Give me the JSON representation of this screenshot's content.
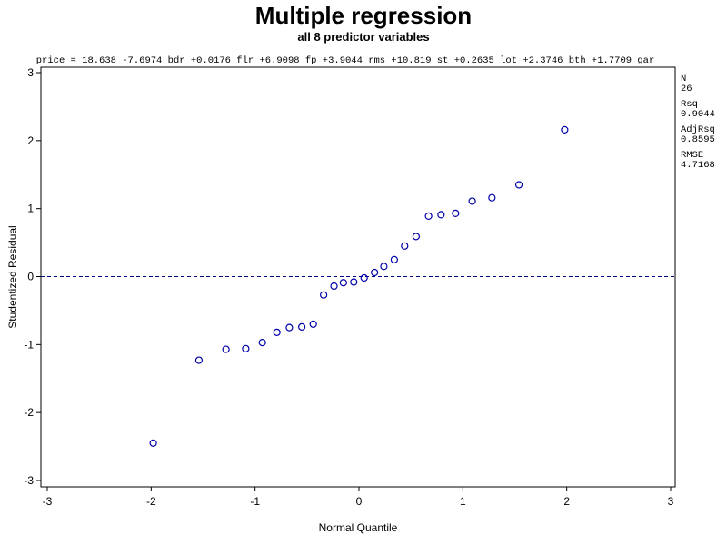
{
  "chart_data": {
    "type": "scatter",
    "title": "Multiple regression",
    "subtitle": "all 8 predictor variables",
    "equation": "price = 18.638 -7.6974 bdr +0.0176 flr +6.9098 fp +3.9044 rms +10.819 st +0.2635 lot +2.3746 bth +1.7709 gar",
    "xlabel": "Normal Quantile",
    "ylabel": "Studentized Residual",
    "xlim": [
      -3,
      3
    ],
    "ylim": [
      -3,
      3
    ],
    "xticks": [
      "-3",
      "-2",
      "-1",
      "0",
      "1",
      "2",
      "3"
    ],
    "yticks": [
      "-3",
      "-2",
      "-1",
      "0",
      "1",
      "2",
      "3"
    ],
    "reference_line": {
      "y": 0,
      "style": "dashed"
    },
    "marker": "circle",
    "marker_color": "#0000aa",
    "points": [
      {
        "x": -1.98,
        "y": -2.45
      },
      {
        "x": -1.54,
        "y": -1.23
      },
      {
        "x": -1.28,
        "y": -1.07
      },
      {
        "x": -1.09,
        "y": -1.06
      },
      {
        "x": -0.93,
        "y": -0.97
      },
      {
        "x": -0.79,
        "y": -0.82
      },
      {
        "x": -0.67,
        "y": -0.75
      },
      {
        "x": -0.55,
        "y": -0.74
      },
      {
        "x": -0.44,
        "y": -0.7
      },
      {
        "x": -0.34,
        "y": -0.27
      },
      {
        "x": -0.24,
        "y": -0.14
      },
      {
        "x": -0.15,
        "y": -0.09
      },
      {
        "x": -0.05,
        "y": -0.08
      },
      {
        "x": 0.05,
        "y": -0.02
      },
      {
        "x": 0.15,
        "y": 0.06
      },
      {
        "x": 0.24,
        "y": 0.15
      },
      {
        "x": 0.34,
        "y": 0.25
      },
      {
        "x": 0.44,
        "y": 0.45
      },
      {
        "x": 0.55,
        "y": 0.59
      },
      {
        "x": 0.67,
        "y": 0.89
      },
      {
        "x": 0.79,
        "y": 0.91
      },
      {
        "x": 0.93,
        "y": 0.93
      },
      {
        "x": 1.09,
        "y": 1.11
      },
      {
        "x": 1.28,
        "y": 1.16
      },
      {
        "x": 1.54,
        "y": 1.35
      },
      {
        "x": 1.98,
        "y": 2.16
      }
    ]
  },
  "stats": [
    {
      "label": "N",
      "value": "26"
    },
    {
      "label": "Rsq",
      "value": "0.9044"
    },
    {
      "label": "AdjRsq",
      "value": "0.8595"
    },
    {
      "label": "RMSE",
      "value": "4.7168"
    }
  ]
}
